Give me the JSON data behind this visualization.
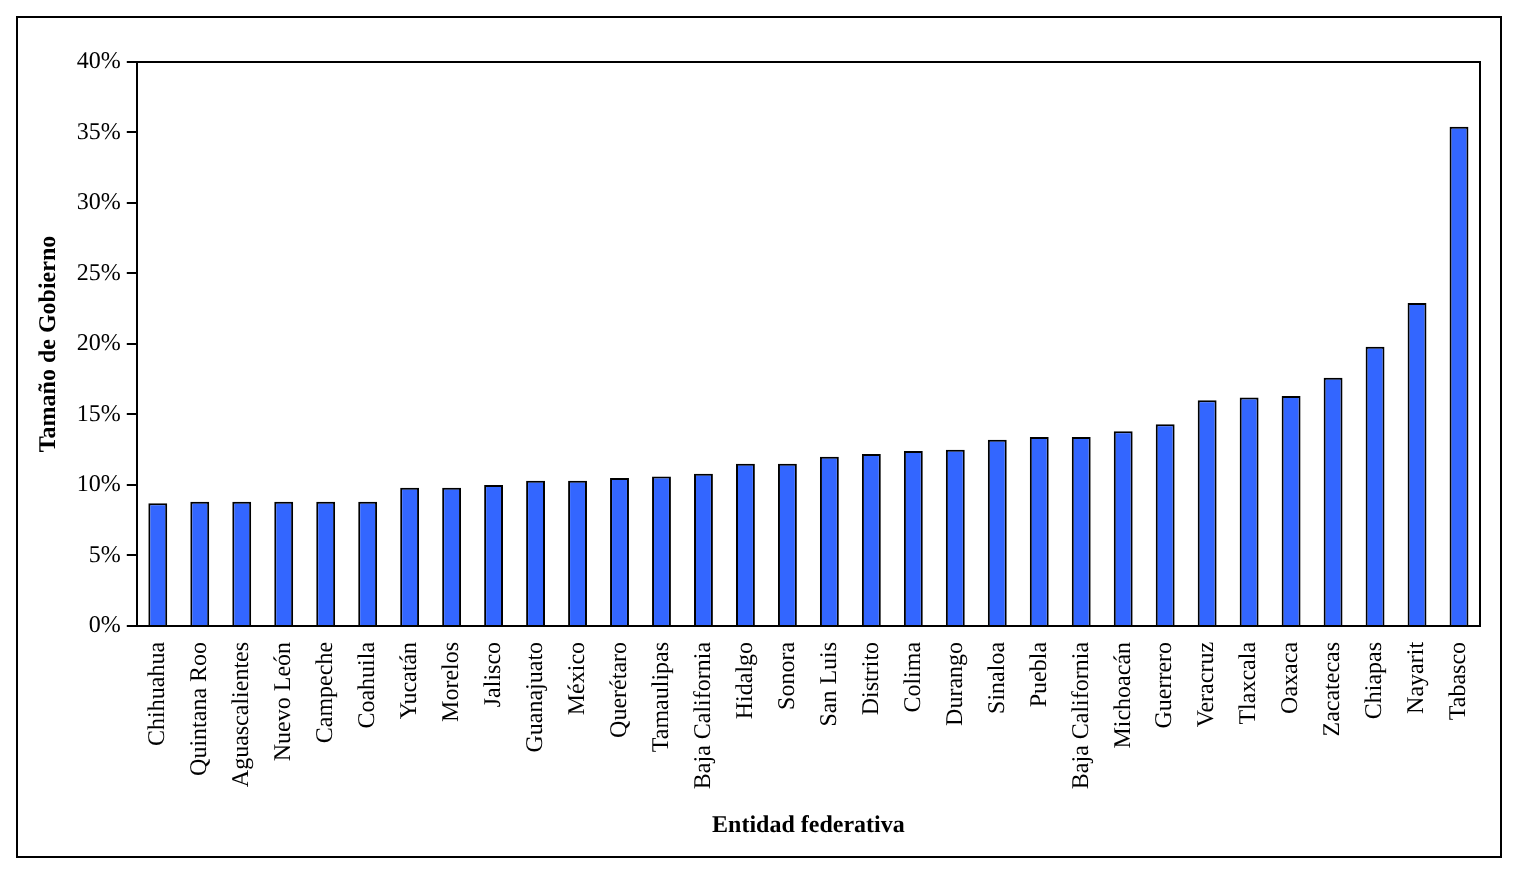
{
  "chart_data": {
    "type": "bar",
    "xlabel": "Entidad federativa",
    "ylabel": "Tamaño de Gobierno",
    "categories": [
      "Chihuahua",
      "Quintana Roo",
      "Aguascalientes",
      "Nuevo León",
      "Campeche",
      "Coahuila",
      "Yucatán",
      "Morelos",
      "Jalisco",
      "Guanajuato",
      "México",
      "Querétaro",
      "Tamaulipas",
      "Baja California",
      "Hidalgo",
      "Sonora",
      "San Luis",
      "Distrito",
      "Colima",
      "Durango",
      "Sinaloa",
      "Puebla",
      "Baja California",
      "Michoacán",
      "Guerrero",
      "Veracruz",
      "Tlaxcala",
      "Oaxaca",
      "Zacatecas",
      "Chiapas",
      "Nayarit",
      "Tabasco"
    ],
    "values": [
      8.7,
      8.8,
      8.8,
      8.8,
      8.8,
      8.8,
      9.8,
      9.8,
      10.0,
      10.3,
      10.3,
      10.5,
      10.6,
      10.8,
      11.5,
      11.5,
      12.0,
      12.2,
      12.4,
      12.5,
      13.2,
      13.4,
      13.4,
      13.8,
      14.3,
      16.0,
      16.2,
      16.3,
      17.6,
      19.8,
      22.9,
      35.4
    ],
    "color": "#3366ff",
    "ylim": [
      0,
      40
    ],
    "yticks": [
      {
        "value": 0,
        "label": "0%"
      },
      {
        "value": 5,
        "label": "5%"
      },
      {
        "value": 10,
        "label": "10%"
      },
      {
        "value": 15,
        "label": "15%"
      },
      {
        "value": 20,
        "label": "20%"
      },
      {
        "value": 25,
        "label": "25%"
      },
      {
        "value": 30,
        "label": "30%"
      },
      {
        "value": 35,
        "label": "35%"
      },
      {
        "value": 40,
        "label": "40%"
      }
    ],
    "grid": false,
    "legend": false
  }
}
